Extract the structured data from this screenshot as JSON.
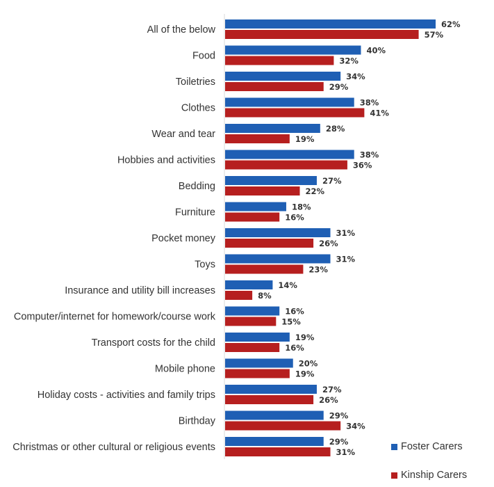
{
  "chart_data": {
    "type": "bar",
    "orientation": "horizontal",
    "categories": [
      "All of the below",
      "Food",
      "Toiletries",
      "Clothes",
      "Wear and tear",
      "Hobbies and activities",
      "Bedding",
      "Furniture",
      "Pocket money",
      "Toys",
      "Insurance and utility bill increases",
      "Computer/internet for homework/course work",
      "Transport costs for the child",
      "Mobile phone",
      "Holiday costs - activities and family trips",
      "Birthday",
      "Christmas or other cultural or religious events"
    ],
    "series": [
      {
        "name": "Foster Carers",
        "color": "#1f5fb4",
        "values": [
          62,
          40,
          34,
          38,
          28,
          38,
          27,
          18,
          31,
          31,
          14,
          16,
          19,
          20,
          27,
          29,
          29
        ]
      },
      {
        "name": "Kinship Carers",
        "color": "#b61f1f",
        "values": [
          57,
          32,
          29,
          41,
          19,
          36,
          22,
          16,
          26,
          23,
          8,
          15,
          16,
          19,
          26,
          34,
          31
        ]
      }
    ],
    "value_suffix": "%",
    "xlim": [
      0,
      75
    ],
    "legend_position": "bottom-right",
    "grid": false
  }
}
